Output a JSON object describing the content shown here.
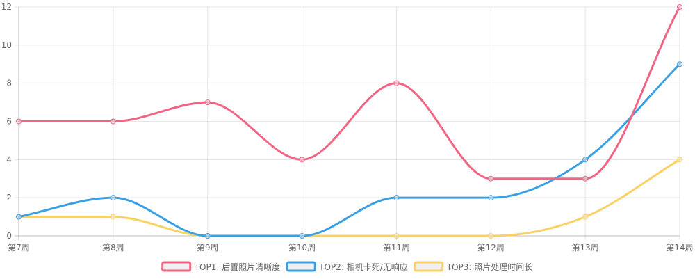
{
  "chart_data": {
    "type": "line",
    "categories": [
      "第7周",
      "第8周",
      "第9周",
      "第10周",
      "第11周",
      "第12周",
      "第13周",
      "第14周"
    ],
    "ylim": [
      0,
      12
    ],
    "yticks": [
      0,
      2,
      4,
      6,
      8,
      10,
      12
    ],
    "grid": true,
    "smooth": true,
    "legend_position": "bottom",
    "series": [
      {
        "name": "TOP1: 后置照片清晰度",
        "color": "#f06584",
        "values": [
          6,
          6,
          7,
          4,
          8,
          3,
          3,
          12
        ]
      },
      {
        "name": "TOP2: 相机卡死/无响应",
        "color": "#3aa0e6",
        "values": [
          1,
          2,
          0,
          0,
          2,
          2,
          4,
          9
        ]
      },
      {
        "name": "TOP3: 照片处理时间长",
        "color": "#fad165",
        "values": [
          1,
          1,
          0,
          0,
          0,
          0,
          1,
          4
        ]
      }
    ]
  }
}
